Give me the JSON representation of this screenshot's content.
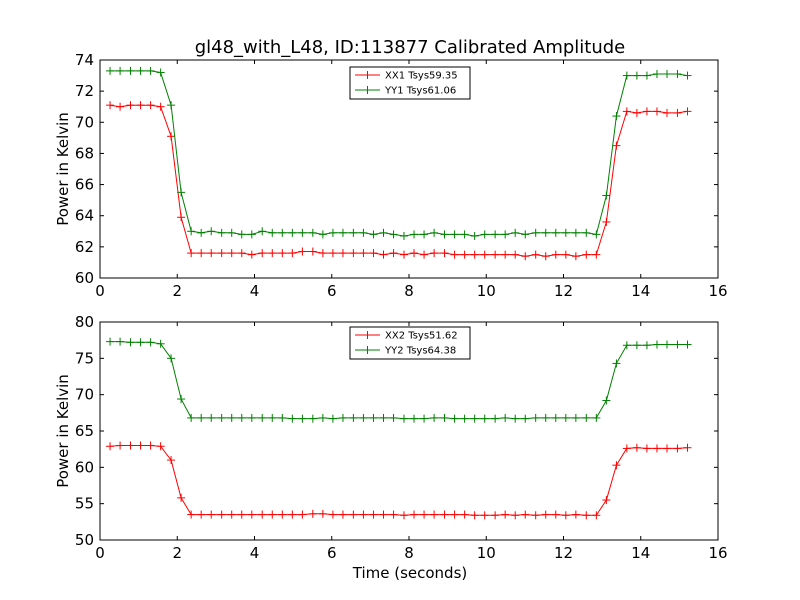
{
  "figure": {
    "title": "gl48_with_L48, ID:113877 Calibrated Amplitude",
    "xlabel": "Time (seconds)"
  },
  "chart_data": [
    {
      "type": "line",
      "title": "gl48_with_L48, ID:113877 Calibrated Amplitude",
      "xlabel": "",
      "ylabel": "Power in Kelvin",
      "xlim": [
        0,
        16
      ],
      "ylim": [
        60,
        74
      ],
      "xticks": [
        0,
        2,
        4,
        6,
        8,
        10,
        12,
        14,
        16
      ],
      "yticks": [
        60,
        62,
        64,
        66,
        68,
        70,
        72,
        74
      ],
      "grid": false,
      "legend_position": "top-center",
      "x": [
        0.26,
        0.52,
        0.79,
        1.05,
        1.31,
        1.57,
        1.84,
        2.1,
        2.36,
        2.62,
        2.88,
        3.15,
        3.41,
        3.67,
        3.93,
        4.2,
        4.46,
        4.72,
        4.98,
        5.24,
        5.51,
        5.77,
        6.03,
        6.29,
        6.56,
        6.82,
        7.08,
        7.34,
        7.6,
        7.87,
        8.13,
        8.39,
        8.65,
        8.92,
        9.18,
        9.44,
        9.7,
        9.96,
        10.23,
        10.49,
        10.75,
        11.01,
        11.28,
        11.54,
        11.8,
        12.06,
        12.32,
        12.59,
        12.85,
        13.11,
        13.37,
        13.64,
        13.9,
        14.16,
        14.42,
        14.68,
        14.95,
        15.21
      ],
      "series": [
        {
          "name": "XX1 Tsys59.35",
          "color": "#ff0000",
          "values": [
            71.1,
            71.0,
            71.1,
            71.1,
            71.1,
            71.0,
            69.1,
            63.9,
            61.6,
            61.6,
            61.6,
            61.6,
            61.6,
            61.6,
            61.5,
            61.6,
            61.6,
            61.6,
            61.6,
            61.7,
            61.7,
            61.6,
            61.6,
            61.6,
            61.6,
            61.6,
            61.6,
            61.5,
            61.6,
            61.5,
            61.6,
            61.5,
            61.6,
            61.6,
            61.5,
            61.5,
            61.5,
            61.5,
            61.5,
            61.5,
            61.5,
            61.4,
            61.5,
            61.4,
            61.5,
            61.5,
            61.4,
            61.5,
            61.5,
            63.6,
            68.5,
            70.7,
            70.6,
            70.7,
            70.7,
            70.6,
            70.6,
            70.7
          ]
        },
        {
          "name": "YY1 Tsys61.06",
          "color": "#008000",
          "values": [
            73.3,
            73.3,
            73.3,
            73.3,
            73.3,
            73.2,
            71.1,
            65.5,
            63.0,
            62.9,
            63.0,
            62.9,
            62.9,
            62.8,
            62.8,
            63.0,
            62.9,
            62.9,
            62.9,
            62.9,
            62.9,
            62.8,
            62.9,
            62.9,
            62.9,
            62.9,
            62.8,
            62.9,
            62.8,
            62.7,
            62.8,
            62.8,
            62.9,
            62.8,
            62.8,
            62.8,
            62.7,
            62.8,
            62.8,
            62.8,
            62.9,
            62.8,
            62.9,
            62.9,
            62.9,
            62.9,
            62.9,
            62.9,
            62.8,
            65.3,
            70.4,
            73.0,
            73.0,
            73.0,
            73.1,
            73.1,
            73.1,
            73.0
          ]
        }
      ]
    },
    {
      "type": "line",
      "title": "",
      "xlabel": "Time (seconds)",
      "ylabel": "Power in Kelvin",
      "xlim": [
        0,
        16
      ],
      "ylim": [
        50,
        80
      ],
      "xticks": [
        0,
        2,
        4,
        6,
        8,
        10,
        12,
        14,
        16
      ],
      "yticks": [
        50,
        55,
        60,
        65,
        70,
        75,
        80
      ],
      "grid": false,
      "legend_position": "top-center",
      "x": [
        0.26,
        0.52,
        0.79,
        1.05,
        1.31,
        1.57,
        1.84,
        2.1,
        2.36,
        2.62,
        2.88,
        3.15,
        3.41,
        3.67,
        3.93,
        4.2,
        4.46,
        4.72,
        4.98,
        5.24,
        5.51,
        5.77,
        6.03,
        6.29,
        6.56,
        6.82,
        7.08,
        7.34,
        7.6,
        7.87,
        8.13,
        8.39,
        8.65,
        8.92,
        9.18,
        9.44,
        9.7,
        9.96,
        10.23,
        10.49,
        10.75,
        11.01,
        11.28,
        11.54,
        11.8,
        12.06,
        12.32,
        12.59,
        12.85,
        13.11,
        13.37,
        13.64,
        13.9,
        14.16,
        14.42,
        14.68,
        14.95,
        15.21
      ],
      "series": [
        {
          "name": "XX2 Tsys51.62",
          "color": "#ff0000",
          "values": [
            62.9,
            63.0,
            63.0,
            63.0,
            63.0,
            62.9,
            61.0,
            55.8,
            53.5,
            53.5,
            53.5,
            53.5,
            53.5,
            53.5,
            53.5,
            53.5,
            53.5,
            53.5,
            53.5,
            53.5,
            53.6,
            53.6,
            53.5,
            53.5,
            53.5,
            53.5,
            53.5,
            53.5,
            53.5,
            53.4,
            53.5,
            53.5,
            53.5,
            53.5,
            53.5,
            53.5,
            53.4,
            53.4,
            53.4,
            53.5,
            53.4,
            53.5,
            53.4,
            53.5,
            53.5,
            53.4,
            53.5,
            53.4,
            53.4,
            55.5,
            60.3,
            62.6,
            62.7,
            62.6,
            62.6,
            62.6,
            62.6,
            62.7
          ]
        },
        {
          "name": "YY2 Tsys64.38",
          "color": "#008000",
          "values": [
            77.3,
            77.3,
            77.2,
            77.2,
            77.2,
            77.0,
            75.0,
            69.4,
            66.8,
            66.8,
            66.8,
            66.8,
            66.8,
            66.8,
            66.8,
            66.8,
            66.8,
            66.8,
            66.7,
            66.7,
            66.7,
            66.8,
            66.7,
            66.8,
            66.8,
            66.8,
            66.8,
            66.8,
            66.8,
            66.7,
            66.7,
            66.7,
            66.8,
            66.8,
            66.7,
            66.7,
            66.7,
            66.7,
            66.7,
            66.8,
            66.7,
            66.7,
            66.8,
            66.8,
            66.8,
            66.8,
            66.8,
            66.8,
            66.8,
            69.2,
            74.3,
            76.8,
            76.8,
            76.8,
            76.9,
            76.9,
            76.9,
            76.9
          ]
        }
      ]
    }
  ]
}
